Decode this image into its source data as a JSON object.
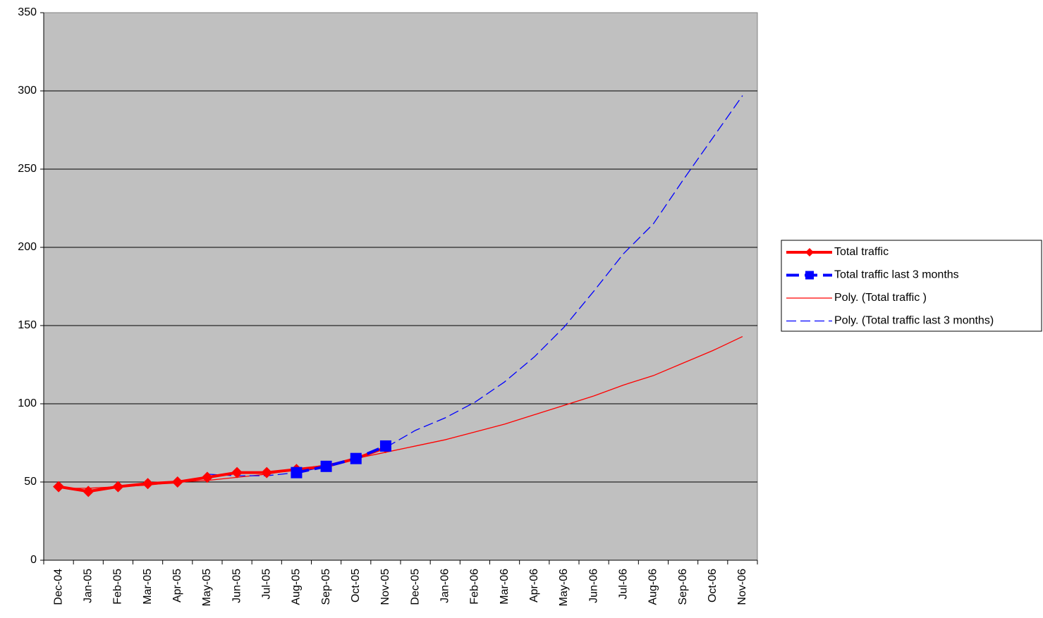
{
  "chart_data": {
    "type": "line",
    "categories": [
      "Dec-04",
      "Jan-05",
      "Feb-05",
      "Mar-05",
      "Apr-05",
      "May-05",
      "Jun-05",
      "Jul-05",
      "Aug-05",
      "Sep-05",
      "Oct-05",
      "Nov-05",
      "Dec-05",
      "Jan-06",
      "Feb-06",
      "Mar-06",
      "Apr-06",
      "May-06",
      "Jun-06",
      "Jul-06",
      "Aug-06",
      "Sep-06",
      "Oct-06",
      "Nov-06"
    ],
    "series": [
      {
        "name": "Total traffic",
        "color": "#ff0000",
        "width": 4,
        "marker": "diamond",
        "dashed": false,
        "values": [
          47,
          44,
          47,
          49,
          50,
          53,
          56,
          56,
          58,
          60,
          65,
          72,
          null,
          null,
          null,
          null,
          null,
          null,
          null,
          null,
          null,
          null,
          null,
          null
        ]
      },
      {
        "name": "Total traffic last 3 months",
        "color": "#0000ff",
        "width": 4,
        "marker": "square",
        "dashed": true,
        "values": [
          null,
          null,
          null,
          null,
          null,
          null,
          null,
          null,
          56,
          60,
          65,
          73,
          null,
          null,
          null,
          null,
          null,
          null,
          null,
          null,
          null,
          null,
          null,
          null
        ]
      },
      {
        "name": "Poly. (Total traffic )",
        "color": "#ff0000",
        "width": 1.3,
        "marker": "none",
        "dashed": false,
        "values": [
          46,
          46,
          47,
          48,
          50,
          51,
          53,
          55,
          58,
          61,
          65,
          69,
          73,
          77,
          82,
          87,
          93,
          99,
          105,
          112,
          118,
          126,
          134,
          143
        ]
      },
      {
        "name": "Poly. (Total traffic last 3 months)",
        "color": "#0000ff",
        "width": 1.3,
        "marker": "none",
        "dashed": true,
        "values": [
          null,
          null,
          null,
          null,
          null,
          55,
          54,
          54,
          56,
          60,
          65,
          72,
          83,
          91,
          101,
          114,
          130,
          149,
          172,
          196,
          215,
          243,
          270,
          297
        ]
      }
    ],
    "ylim": [
      0,
      350
    ],
    "yticks": [
      0,
      50,
      100,
      150,
      200,
      250,
      300,
      350
    ],
    "grid": true,
    "plot_background": "#c0c0c0",
    "legend": "right"
  }
}
